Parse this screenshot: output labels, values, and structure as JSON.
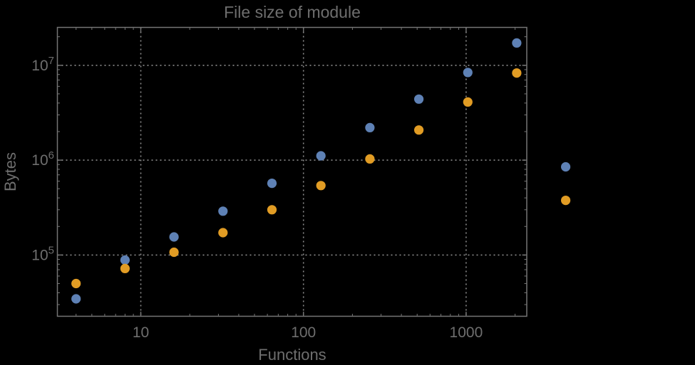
{
  "chart_data": {
    "type": "scatter",
    "title": "File size of module",
    "xlabel": "Functions",
    "ylabel": "Bytes",
    "xscale": "log",
    "yscale": "log",
    "xlim": [
      3.07,
      2360
    ],
    "ylim": [
      22600,
      25100000
    ],
    "grid": "dotted-at-decades",
    "legend_position": "none",
    "x": [
      4,
      8,
      16,
      32,
      64,
      128,
      256,
      512,
      1024,
      2048,
      4096
    ],
    "series": [
      {
        "name": "series-blue",
        "color": "#5e81b5",
        "values": [
          34500,
          88500,
          155000,
          290000,
          570000,
          1110000,
          2200000,
          4400000,
          8400000,
          17200000,
          850000
        ]
      },
      {
        "name": "series-orange",
        "color": "#e19c24",
        "values": [
          50000,
          72000,
          107000,
          172000,
          300000,
          540000,
          1030000,
          2080000,
          4100000,
          8300000,
          377000
        ]
      }
    ],
    "x_ticks": [
      {
        "label": "10",
        "value": 10
      },
      {
        "label": "100",
        "value": 100
      },
      {
        "label": "1000",
        "value": 1000
      }
    ],
    "y_ticks": [
      {
        "base": "10",
        "exp": "5",
        "value": 100000
      },
      {
        "base": "10",
        "exp": "6",
        "value": 1000000
      },
      {
        "base": "10",
        "exp": "7",
        "value": 10000000
      }
    ]
  },
  "colors": {
    "background": "#000000",
    "frame": "#757575",
    "grid": "#8c8c8c",
    "text": "#6e6e6e",
    "series_blue": "#5e81b5",
    "series_orange": "#e19c24"
  }
}
